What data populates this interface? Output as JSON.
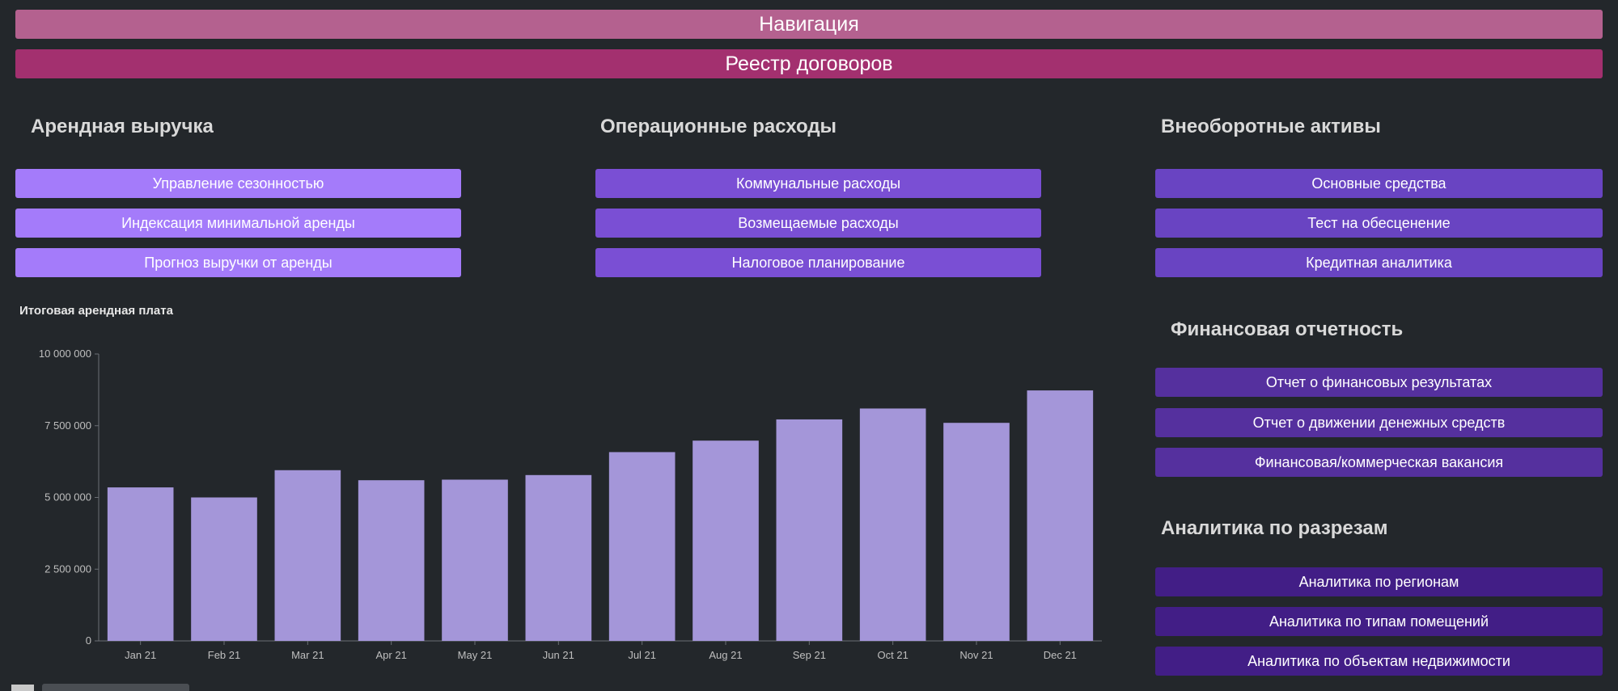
{
  "header": {
    "nav_label": "Навигация",
    "registry_label": "Реестр договоров"
  },
  "sections": {
    "rental_revenue": {
      "title": "Арендная выручка",
      "buttons": [
        "Управление сезонностью",
        "Индексация минимальной аренды",
        "Прогноз выручки от аренды"
      ]
    },
    "operating_expenses": {
      "title": "Операционные расходы",
      "buttons": [
        "Коммунальные расходы",
        "Возмещаемые расходы",
        "Налоговое планирование"
      ]
    },
    "non_current_assets": {
      "title": "Внеоборотные активы",
      "buttons": [
        "Основные средства",
        "Тест на обесценение",
        "Кредитная аналитика"
      ]
    },
    "financial_reporting": {
      "title": "Финансовая отчетность",
      "buttons": [
        "Отчет о финансовых результатах",
        "Отчет о движении денежных средств",
        "Финансовая/коммерческая вакансия"
      ]
    },
    "slice_analytics": {
      "title": "Аналитика по разрезам",
      "buttons": [
        "Аналитика по регионам",
        "Аналитика по типам помещений",
        "Аналитика по объектам недвижимости"
      ]
    }
  },
  "colors": {
    "background": "#23272b",
    "nav_bar": "#b4618f",
    "registry_bar": "#a3306f",
    "bar_fill": "#a496d9"
  },
  "chart_data": {
    "type": "bar",
    "title": "Итоговая арендная плата",
    "categories": [
      "Jan 21",
      "Feb 21",
      "Mar 21",
      "Apr 21",
      "May 21",
      "Jun 21",
      "Jul 21",
      "Aug 21",
      "Sep 21",
      "Oct 21",
      "Nov 21",
      "Dec 21"
    ],
    "values": [
      5350000,
      5000000,
      5950000,
      5600000,
      5620000,
      5780000,
      6580000,
      6980000,
      7720000,
      8100000,
      7600000,
      8730000
    ],
    "ylim": [
      0,
      10000000
    ],
    "yticks": [
      0,
      2500000,
      5000000,
      7500000,
      10000000
    ],
    "ytick_labels": [
      "0",
      "2 500 000",
      "5 000 000",
      "7 500 000",
      "10 000 000"
    ],
    "xlabel": "",
    "ylabel": "",
    "grid": false,
    "legend": "none"
  }
}
